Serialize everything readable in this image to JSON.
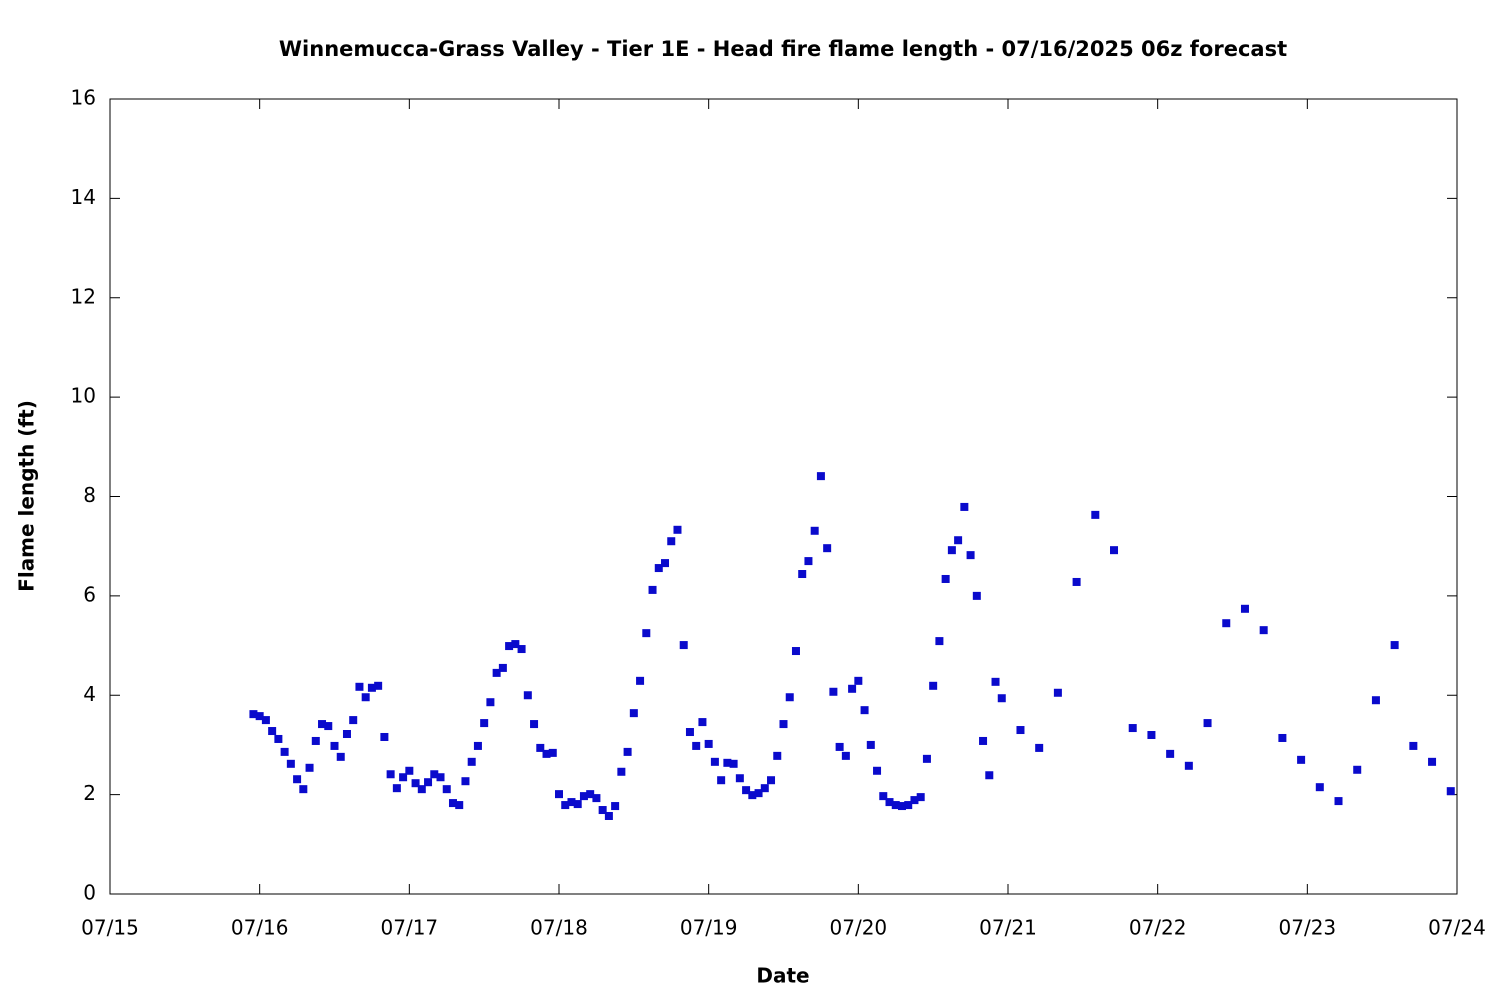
{
  "chart_data": {
    "type": "scatter",
    "title": "Winnemucca-Grass Valley - Tier 1E - Head fire flame length - 07/16/2025 06z forecast",
    "xlabel": "Date",
    "ylabel": "Flame length (ft)",
    "color": "#0a0acc",
    "xlim": [
      0,
      216
    ],
    "xticks": [
      {
        "value": 0,
        "label": "07/15"
      },
      {
        "value": 24,
        "label": "07/16"
      },
      {
        "value": 48,
        "label": "07/17"
      },
      {
        "value": 72,
        "label": "07/18"
      },
      {
        "value": 96,
        "label": "07/19"
      },
      {
        "value": 120,
        "label": "07/20"
      },
      {
        "value": 144,
        "label": "07/21"
      },
      {
        "value": 168,
        "label": "07/22"
      },
      {
        "value": 192,
        "label": "07/23"
      },
      {
        "value": 216,
        "label": "07/24"
      }
    ],
    "ylim": [
      0,
      16
    ],
    "yticks": [
      0,
      2,
      4,
      6,
      8,
      10,
      12,
      14,
      16
    ],
    "x": [
      23,
      24,
      25,
      26,
      27,
      28,
      29,
      30,
      31,
      32,
      33,
      34,
      35,
      36,
      37,
      38,
      39,
      40,
      41,
      42,
      43,
      44,
      45,
      46,
      47,
      48,
      49,
      50,
      51,
      52,
      53,
      54,
      55,
      56,
      57,
      58,
      59,
      60,
      61,
      62,
      63,
      64,
      65,
      66,
      67,
      68,
      69,
      70,
      71,
      72,
      73,
      74,
      75,
      76,
      77,
      78,
      79,
      80,
      81,
      82,
      83,
      84,
      85,
      86,
      87,
      88,
      89,
      90,
      91,
      92,
      93,
      94,
      95,
      96,
      97,
      98,
      99,
      100,
      101,
      102,
      103,
      104,
      105,
      106,
      107,
      108,
      109,
      110,
      111,
      112,
      113,
      114,
      115,
      116,
      117,
      118,
      119,
      120,
      121,
      122,
      123,
      124,
      125,
      126,
      127,
      128,
      129,
      130,
      131,
      132,
      133,
      134,
      135,
      136,
      137,
      138,
      139,
      140,
      141,
      142,
      143,
      146,
      149,
      152,
      155,
      158,
      161,
      164,
      167,
      170,
      173,
      176,
      179,
      182,
      185,
      188,
      191,
      194,
      197,
      200,
      203,
      206,
      209,
      212,
      215
    ],
    "values": [
      3.62,
      3.58,
      3.5,
      3.28,
      3.12,
      2.86,
      2.62,
      2.31,
      2.11,
      2.54,
      3.08,
      3.42,
      3.38,
      2.98,
      2.76,
      3.22,
      3.5,
      4.17,
      3.96,
      4.15,
      4.19,
      3.16,
      2.41,
      2.13,
      2.35,
      2.48,
      2.23,
      2.11,
      2.25,
      2.41,
      2.35,
      2.11,
      1.83,
      1.79,
      2.27,
      2.66,
      2.98,
      3.44,
      3.86,
      4.45,
      4.55,
      4.99,
      5.03,
      4.93,
      4.0,
      3.42,
      2.94,
      2.82,
      2.84,
      2.01,
      1.79,
      1.85,
      1.81,
      1.97,
      2.01,
      1.93,
      1.69,
      1.57,
      1.77,
      2.46,
      2.86,
      3.64,
      4.29,
      5.25,
      6.12,
      6.56,
      6.66,
      7.1,
      7.33,
      5.01,
      3.26,
      2.98,
      3.46,
      3.02,
      2.66,
      2.29,
      2.64,
      2.62,
      2.33,
      2.09,
      1.99,
      2.03,
      2.13,
      2.29,
      2.78,
      3.42,
      3.96,
      4.89,
      6.44,
      6.7,
      7.31,
      8.41,
      6.96,
      4.07,
      2.96,
      2.78,
      4.13,
      4.29,
      3.7,
      3.0,
      2.48,
      1.97,
      1.85,
      1.79,
      1.77,
      1.79,
      1.89,
      1.95,
      2.72,
      4.19,
      5.09,
      6.34,
      6.92,
      7.12,
      7.79,
      6.82,
      6.0,
      3.08,
      2.39,
      4.27,
      3.94,
      3.3,
      2.94,
      4.05,
      6.28,
      7.63,
      6.92,
      3.34,
      3.2,
      2.82,
      2.58,
      3.44,
      5.45,
      5.74,
      5.31,
      3.14,
      2.7,
      2.15,
      1.87,
      2.5,
      3.9,
      5.01,
      2.98,
      2.66,
      2.07
    ]
  }
}
